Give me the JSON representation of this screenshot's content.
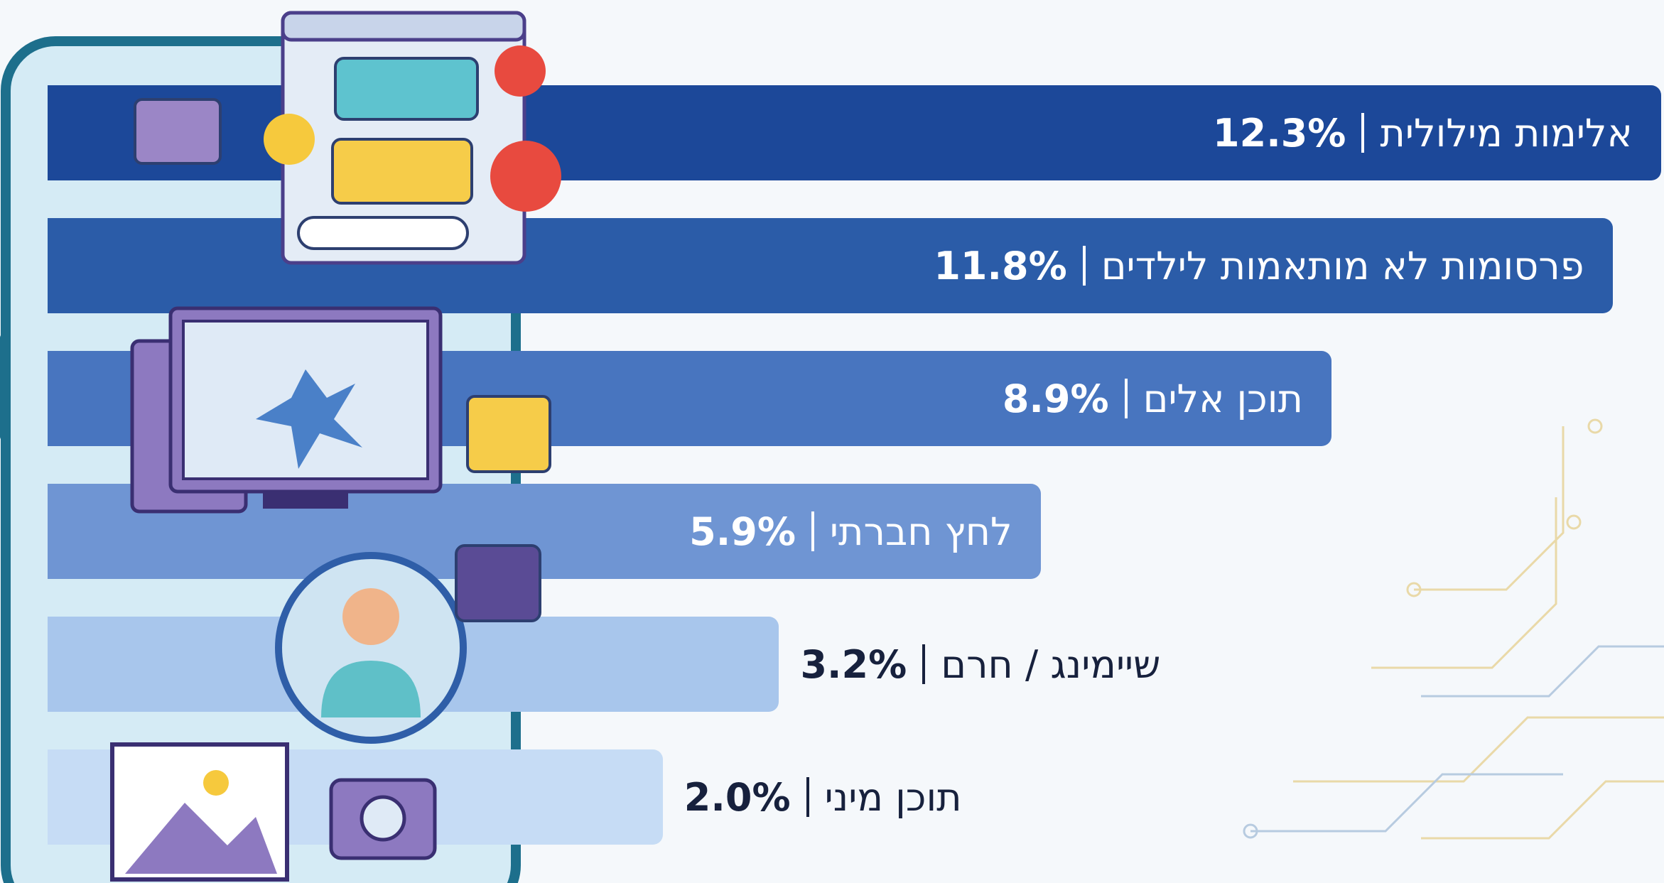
{
  "chart_data": {
    "type": "bar",
    "orientation": "horizontal",
    "categories": [
      "אלימות מילולית",
      "פרסומות לא מותאמות לילדים",
      "תוכן אלים",
      "לחץ חברתי",
      "שיימינג / חרם",
      "תוכן מיני"
    ],
    "values": [
      12.3,
      11.8,
      8.9,
      5.9,
      3.2,
      2.0
    ],
    "value_labels": [
      "12.3%",
      "11.8%",
      "8.9%",
      "5.9%",
      "3.2%",
      "2.0%"
    ],
    "colors": [
      "#1c4899",
      "#2b5ca8",
      "#4875bf",
      "#6f95d3",
      "#a8c6ec",
      "#c6dcf5"
    ]
  }
}
